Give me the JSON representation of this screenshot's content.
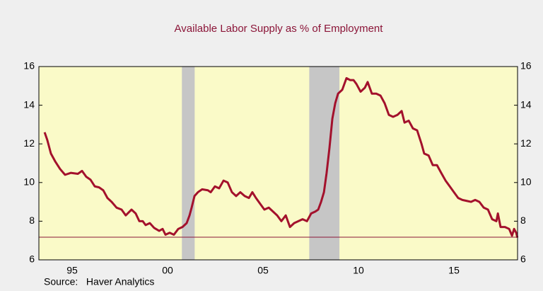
{
  "chart_data": {
    "type": "line",
    "title": "Available Labor Supply as % of Employment",
    "source": "Source:   Haver Analytics",
    "x": [
      1994.06,
      1994.2,
      1994.39,
      1994.61,
      1994.87,
      1995.13,
      1995.43,
      1995.8,
      1996.02,
      1996.24,
      1996.46,
      1996.69,
      1996.91,
      1997.13,
      1997.35,
      1997.57,
      1997.83,
      1998.09,
      1998.31,
      1998.61,
      1998.83,
      1999.02,
      1999.2,
      1999.35,
      1999.57,
      1999.8,
      2000.06,
      2000.24,
      2000.39,
      2000.61,
      2000.83,
      2001.06,
      2001.28,
      2001.5,
      2001.65,
      2001.76,
      2001.91,
      2002.09,
      2002.31,
      2002.61,
      2002.76,
      2002.98,
      2003.2,
      2003.43,
      2003.65,
      2003.87,
      2004.09,
      2004.31,
      2004.54,
      2004.76,
      2004.94,
      2005.13,
      2005.35,
      2005.57,
      2005.8,
      2006.02,
      2006.24,
      2006.46,
      2006.69,
      2006.91,
      2007.13,
      2007.35,
      2007.57,
      2007.8,
      2008.02,
      2008.24,
      2008.39,
      2008.54,
      2008.69,
      2008.83,
      2008.98,
      2009.13,
      2009.28,
      2009.43,
      2009.65,
      2009.87,
      2010.06,
      2010.24,
      2010.39,
      2010.61,
      2010.83,
      2010.98,
      2011.2,
      2011.43,
      2011.65,
      2011.87,
      2012.09,
      2012.31,
      2012.54,
      2012.76,
      2012.91,
      2013.13,
      2013.35,
      2013.57,
      2013.8,
      2013.94,
      2014.17,
      2014.39,
      2014.61,
      2014.83,
      2015.06,
      2015.28,
      2015.5,
      2015.72,
      2015.94,
      2016.17,
      2016.39,
      2016.61,
      2016.83,
      2017.06,
      2017.28,
      2017.5,
      2017.72,
      2017.8,
      2017.94,
      2018.17,
      2018.39,
      2018.54,
      2018.65,
      2018.76,
      2018.82
    ],
    "series": [
      {
        "color": "#a3112c",
        "values": [
          12.6,
          12.2,
          11.5,
          11.1,
          10.7,
          10.4,
          10.5,
          10.45,
          10.6,
          10.3,
          10.15,
          9.8,
          9.75,
          9.6,
          9.2,
          9.0,
          8.7,
          8.6,
          8.3,
          8.6,
          8.4,
          8.0,
          8.0,
          7.8,
          7.9,
          7.65,
          7.5,
          7.6,
          7.3,
          7.4,
          7.3,
          7.6,
          7.7,
          7.9,
          8.3,
          8.7,
          9.3,
          9.5,
          9.65,
          9.6,
          9.5,
          9.8,
          9.7,
          10.1,
          10.0,
          9.5,
          9.3,
          9.5,
          9.3,
          9.2,
          9.5,
          9.2,
          8.9,
          8.6,
          8.7,
          8.5,
          8.3,
          8.0,
          8.3,
          7.7,
          7.9,
          8.0,
          8.1,
          8.0,
          8.4,
          8.5,
          8.6,
          9.0,
          9.5,
          10.5,
          11.8,
          13.3,
          14.1,
          14.6,
          14.8,
          15.4,
          15.3,
          15.3,
          15.1,
          14.7,
          14.9,
          15.2,
          14.6,
          14.6,
          14.5,
          14.1,
          13.5,
          13.4,
          13.5,
          13.7,
          13.1,
          13.2,
          12.8,
          12.7,
          12.0,
          11.5,
          11.4,
          10.9,
          10.9,
          10.5,
          10.1,
          9.8,
          9.5,
          9.2,
          9.1,
          9.05,
          9.0,
          9.1,
          9.0,
          8.7,
          8.6,
          8.1,
          8.0,
          8.4,
          7.7,
          7.7,
          7.6,
          7.25,
          7.6,
          7.4,
          7.15
        ]
      }
    ],
    "recessions": [
      [
        2001.25,
        2001.92
      ],
      [
        2007.92,
        2009.5
      ]
    ],
    "reference_line": 7.17,
    "xlim": [
      1993.76,
      2018.83
    ],
    "xticks": [
      {
        "value": 1995.5,
        "label": "95"
      },
      {
        "value": 2000.5,
        "label": "00"
      },
      {
        "value": 2005.5,
        "label": "05"
      },
      {
        "value": 2010.5,
        "label": "10"
      },
      {
        "value": 2015.5,
        "label": "15"
      }
    ],
    "ylim": [
      6,
      16
    ],
    "yticks": [
      6,
      8,
      10,
      12,
      14,
      16
    ],
    "y2lim": [
      6,
      16
    ],
    "y2ticks": [
      6,
      8,
      10,
      12,
      14,
      16
    ]
  }
}
